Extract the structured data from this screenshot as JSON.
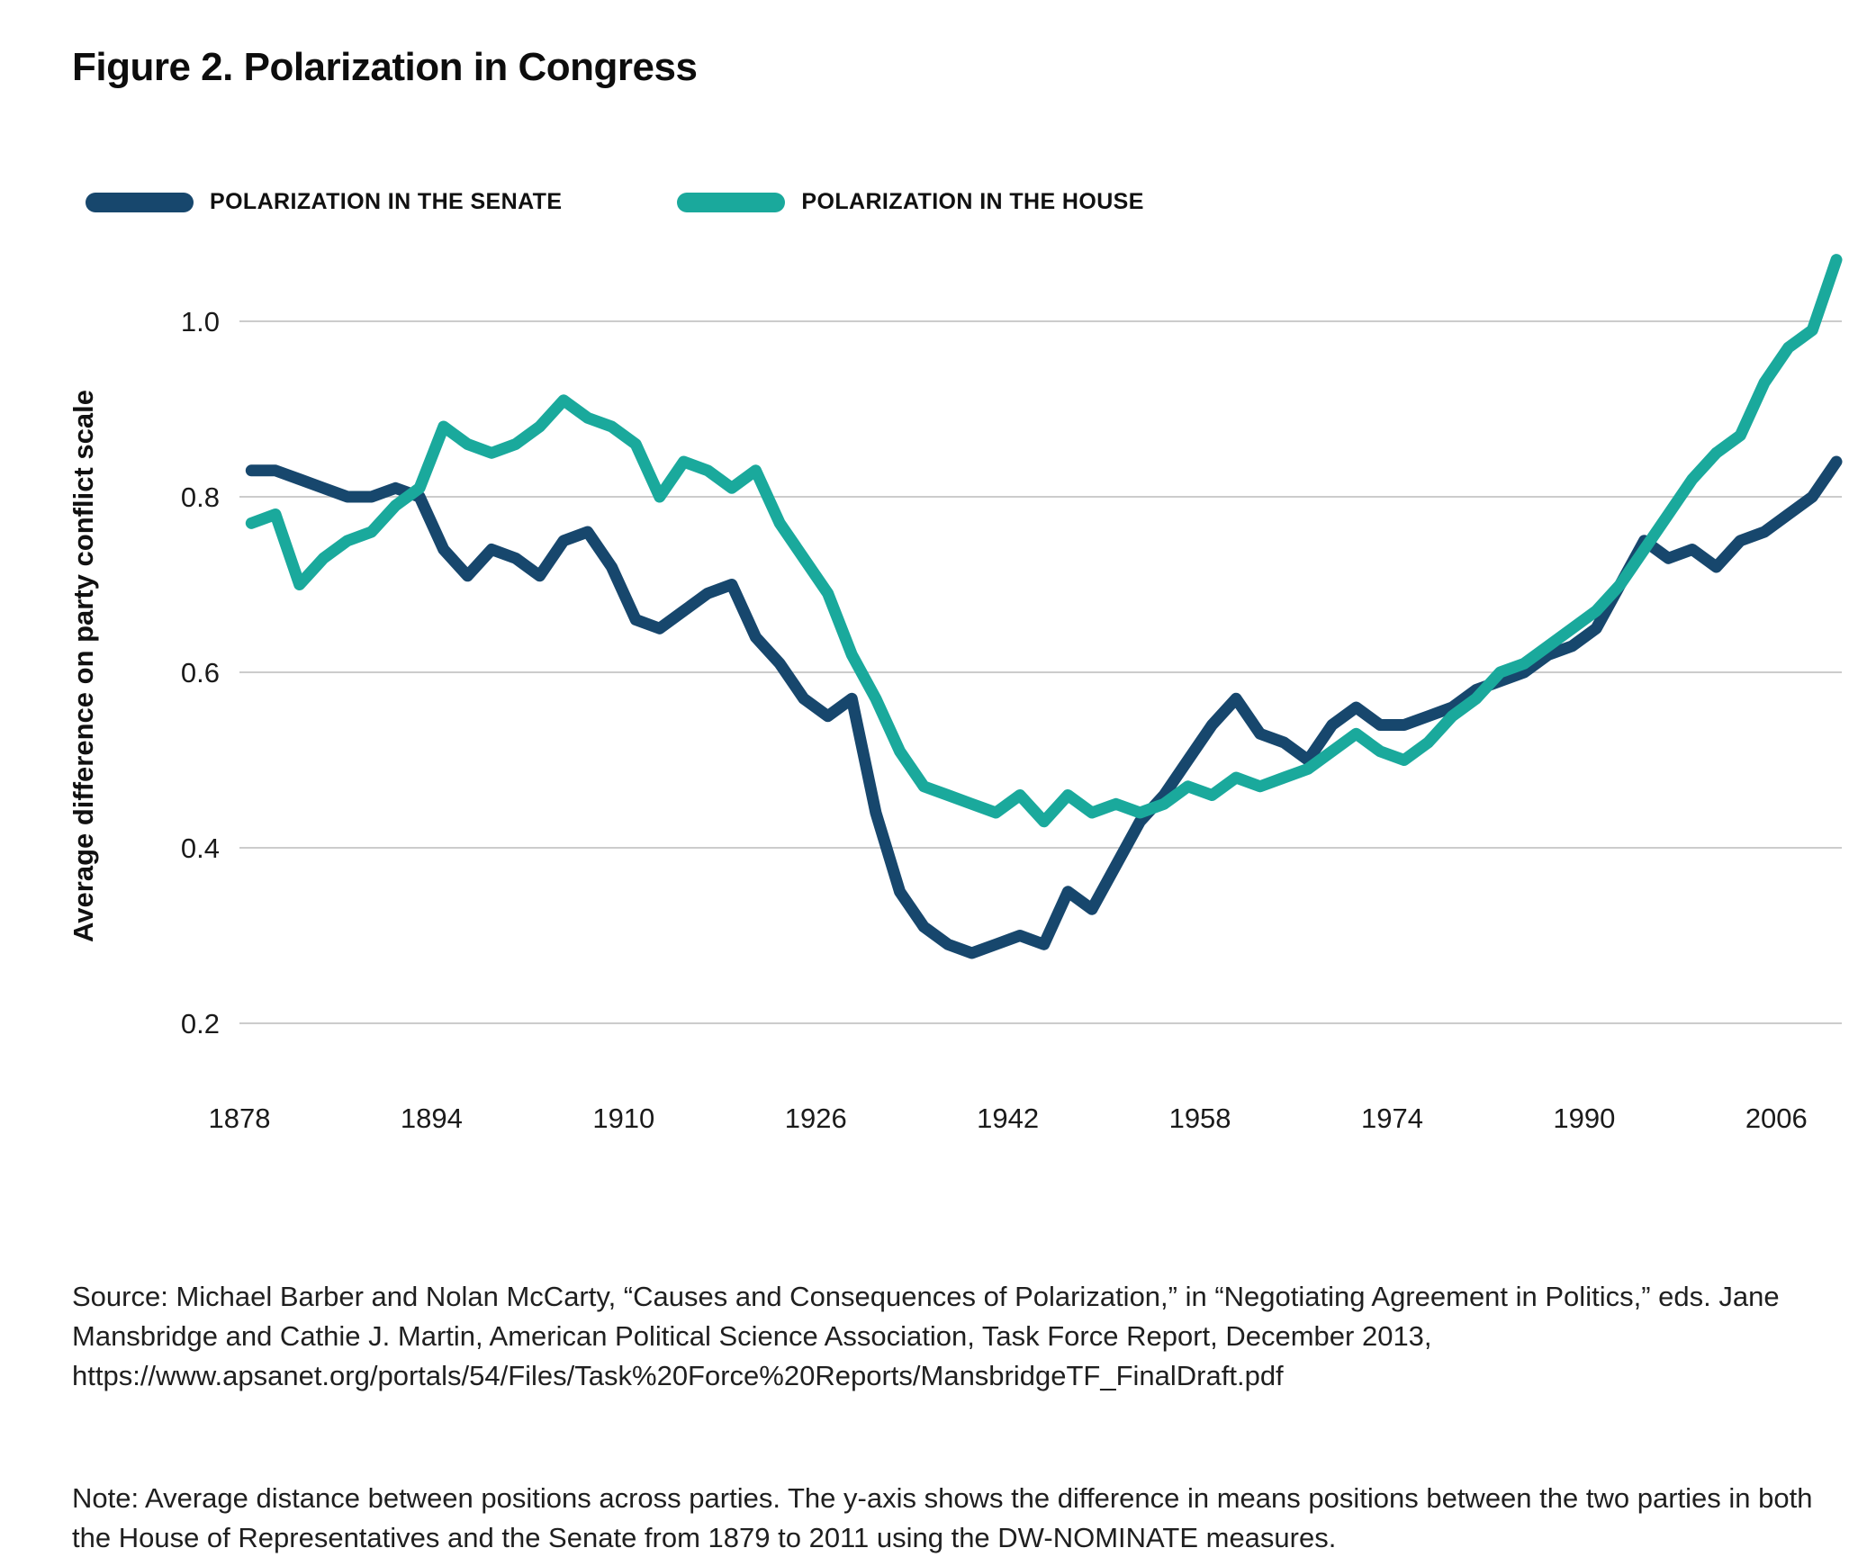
{
  "page": {
    "title": "Figure 2. Polarization in Congress"
  },
  "legend": [
    {
      "label": "POLARIZATION IN THE SENATE",
      "color": "#17476D"
    },
    {
      "label": "POLARIZATION IN THE HOUSE",
      "color": "#1AA99C"
    }
  ],
  "chart_data": {
    "type": "line",
    "title": "Figure 2. Polarization in Congress",
    "xlabel": "",
    "ylabel": "Average difference on party conflict scale",
    "x_ticks": [
      1878,
      1894,
      1910,
      1926,
      1942,
      1958,
      1974,
      1990,
      2006
    ],
    "y_ticks": [
      1.0,
      0.8,
      0.6,
      0.4,
      0.2
    ],
    "y_tick_labels": [
      "1.0",
      "0.8",
      "0.6",
      "0.4",
      "0.2"
    ],
    "xlim": [
      1878,
      2011
    ],
    "ylim": [
      0.1,
      1.1
    ],
    "grid": "horizontal",
    "legend_position": "top",
    "grid_color": "#cccccc",
    "x": [
      1879,
      1881,
      1883,
      1885,
      1887,
      1889,
      1891,
      1893,
      1895,
      1897,
      1899,
      1901,
      1903,
      1905,
      1907,
      1909,
      1911,
      1913,
      1915,
      1917,
      1919,
      1921,
      1923,
      1925,
      1927,
      1929,
      1931,
      1933,
      1935,
      1937,
      1939,
      1941,
      1943,
      1945,
      1947,
      1949,
      1951,
      1953,
      1955,
      1957,
      1959,
      1961,
      1963,
      1965,
      1967,
      1969,
      1971,
      1973,
      1975,
      1977,
      1979,
      1981,
      1983,
      1985,
      1987,
      1989,
      1991,
      1993,
      1995,
      1997,
      1999,
      2001,
      2003,
      2005,
      2007,
      2009,
      2011
    ],
    "series": [
      {
        "name": "Polarization in the Senate",
        "color": "#17476D",
        "values": [
          0.83,
          0.83,
          0.82,
          0.81,
          0.8,
          0.8,
          0.81,
          0.8,
          0.74,
          0.71,
          0.74,
          0.73,
          0.71,
          0.75,
          0.76,
          0.72,
          0.66,
          0.65,
          0.67,
          0.69,
          0.7,
          0.64,
          0.61,
          0.57,
          0.55,
          0.57,
          0.44,
          0.35,
          0.31,
          0.29,
          0.28,
          0.29,
          0.3,
          0.29,
          0.35,
          0.33,
          0.38,
          0.43,
          0.46,
          0.5,
          0.54,
          0.57,
          0.53,
          0.52,
          0.5,
          0.54,
          0.56,
          0.54,
          0.54,
          0.55,
          0.56,
          0.58,
          0.59,
          0.6,
          0.62,
          0.63,
          0.65,
          0.7,
          0.75,
          0.73,
          0.74,
          0.72,
          0.75,
          0.76,
          0.78,
          0.8,
          0.84
        ]
      },
      {
        "name": "Polarization in the House",
        "color": "#1AA99C",
        "values": [
          0.77,
          0.78,
          0.7,
          0.73,
          0.75,
          0.76,
          0.79,
          0.81,
          0.88,
          0.86,
          0.85,
          0.86,
          0.88,
          0.91,
          0.89,
          0.88,
          0.86,
          0.8,
          0.84,
          0.83,
          0.81,
          0.83,
          0.77,
          0.73,
          0.69,
          0.62,
          0.57,
          0.51,
          0.47,
          0.46,
          0.45,
          0.44,
          0.46,
          0.43,
          0.46,
          0.44,
          0.45,
          0.44,
          0.45,
          0.47,
          0.46,
          0.48,
          0.47,
          0.48,
          0.49,
          0.51,
          0.53,
          0.51,
          0.5,
          0.52,
          0.55,
          0.57,
          0.6,
          0.61,
          0.63,
          0.65,
          0.67,
          0.7,
          0.74,
          0.78,
          0.82,
          0.85,
          0.87,
          0.93,
          0.97,
          0.99,
          1.07
        ]
      }
    ]
  },
  "source": {
    "text": "Source: Michael Barber and Nolan McCarty, “Causes and Consequences of Polarization,” in “Negotiating Agreement in Politics,” eds. Jane Mansbridge and Cathie J. Martin, American Political Science Association, Task Force Report, December 2013, https://www.apsanet.org/portals/54/Files/Task%20Force%20Reports/MansbridgeTF_FinalDraft.pdf"
  },
  "note": {
    "text": "Note: Average distance between positions across parties. The y-axis shows the difference in means positions between the two parties in both the House of Representatives and the Senate from 1879 to 2011 using the DW-NOMINATE measures."
  }
}
